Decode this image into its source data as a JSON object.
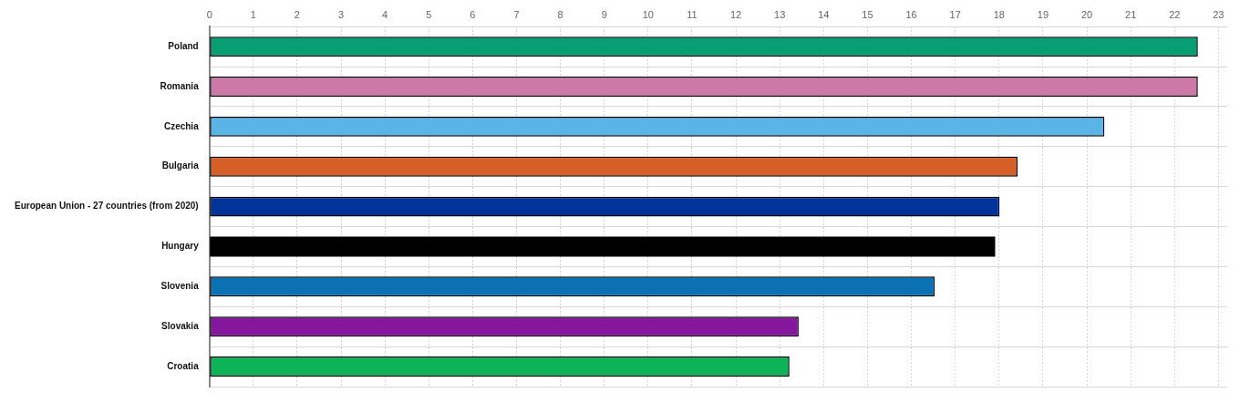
{
  "chart_data": {
    "type": "bar",
    "orientation": "horizontal",
    "categories": [
      "Poland",
      "Romania",
      "Czechia",
      "Bulgaria",
      "European Union - 27 countries (from 2020)",
      "Hungary",
      "Slovenia",
      "Slovakia",
      "Croatia"
    ],
    "values": [
      22.53,
      22.53,
      20.4,
      18.42,
      18.01,
      17.91,
      16.53,
      13.43,
      13.22
    ],
    "colors": [
      "#079e73",
      "#cc79a7",
      "#5ab4e5",
      "#d55f27",
      "#003399",
      "#000000",
      "#0a72b2",
      "#85179c",
      "#0db359"
    ],
    "xlim": [
      0,
      23.2
    ],
    "xticks": [
      0,
      1,
      2,
      3,
      4,
      5,
      6,
      7,
      8,
      9,
      10,
      11,
      12,
      13,
      14,
      15,
      16,
      17,
      18,
      19,
      20,
      21,
      22,
      23
    ],
    "grid": true,
    "legend": false
  }
}
